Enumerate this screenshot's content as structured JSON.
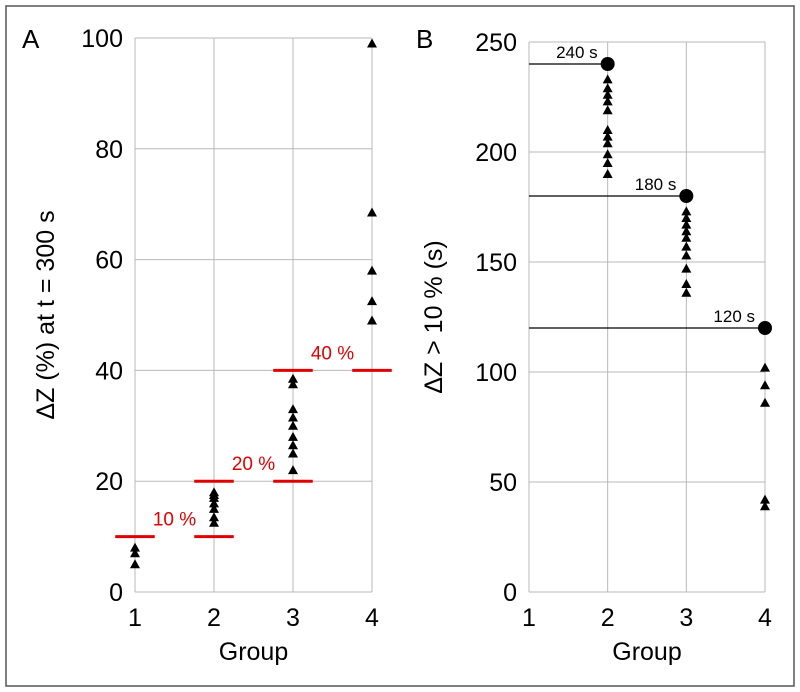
{
  "chart_data": [
    {
      "panel": "A",
      "type": "scatter",
      "xlabel": "Group",
      "ylabel": "ΔZ (%) at t = 300 s",
      "x_ticks": [
        "1",
        "2",
        "3",
        "4"
      ],
      "xlim": [
        1,
        4
      ],
      "y_ticks": [
        "0",
        "20",
        "40",
        "60",
        "80",
        "100"
      ],
      "ylim": [
        0,
        100
      ],
      "grid": true,
      "marker": "triangle",
      "series": [
        {
          "x": 1,
          "values": [
            5,
            7,
            8
          ]
        },
        {
          "x": 2,
          "values": [
            12.5,
            13.5,
            15,
            16,
            17,
            17.5,
            18
          ]
        },
        {
          "x": 3,
          "values": [
            22,
            25,
            26.5,
            28,
            30,
            31.5,
            33,
            37.5,
            38.5
          ]
        },
        {
          "x": 4,
          "values": [
            49,
            52.5,
            58,
            68.5,
            99
          ]
        }
      ],
      "thresholds": [
        {
          "y": 10,
          "x_from": 0.75,
          "x_to": 1.25
        },
        {
          "y": 10,
          "x_from": 1.75,
          "x_to": 2.25
        },
        {
          "y": 20,
          "x_from": 1.75,
          "x_to": 2.25
        },
        {
          "y": 20,
          "x_from": 2.75,
          "x_to": 3.25
        },
        {
          "y": 40,
          "x_from": 2.75,
          "x_to": 3.25
        },
        {
          "y": 40,
          "x_from": 3.75,
          "x_to": 4.25
        }
      ],
      "threshold_color": "#e00000",
      "annotations": [
        {
          "text": "10 %",
          "x": 1.5,
          "y": 12
        },
        {
          "text": "20 %",
          "x": 2.5,
          "y": 22
        },
        {
          "text": "40 %",
          "x": 3.5,
          "y": 42
        }
      ]
    },
    {
      "panel": "B",
      "type": "scatter",
      "xlabel": "Group",
      "ylabel": "ΔZ > 10 % (s)",
      "x_ticks": [
        "1",
        "2",
        "3",
        "4"
      ],
      "xlim": [
        1,
        4
      ],
      "y_ticks": [
        "0",
        "50",
        "100",
        "150",
        "200",
        "250"
      ],
      "ylim": [
        0,
        250
      ],
      "grid": true,
      "marker": "triangle",
      "series": [
        {
          "x": 2,
          "values": [
            190,
            195,
            199,
            204,
            207,
            210,
            219,
            223,
            226,
            229,
            233
          ]
        },
        {
          "x": 3,
          "values": [
            136,
            140,
            147,
            153,
            157,
            161,
            164,
            167,
            170,
            173
          ]
        },
        {
          "x": 4,
          "values": [
            39,
            42,
            86,
            94,
            102
          ]
        }
      ],
      "reference_points": [
        {
          "x": 2,
          "y": 240,
          "label": "240 s"
        },
        {
          "x": 3,
          "y": 180,
          "label": "180 s"
        },
        {
          "x": 4,
          "y": 120,
          "label": "120 s"
        }
      ]
    }
  ]
}
